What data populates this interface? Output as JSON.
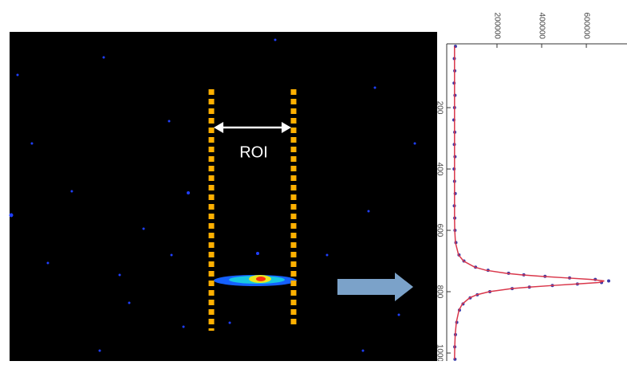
{
  "image": {
    "label": "ROI"
  },
  "chart_data": {
    "type": "line",
    "x": [
      0,
      40,
      80,
      120,
      160,
      200,
      240,
      280,
      320,
      360,
      400,
      440,
      480,
      520,
      560,
      600,
      640,
      680,
      700,
      720,
      730,
      740,
      745,
      750,
      755,
      760,
      765,
      770,
      775,
      780,
      785,
      790,
      800,
      810,
      820,
      840,
      860,
      900,
      940,
      980,
      1020
    ],
    "series": [
      {
        "color": "#3a3aa8",
        "style": "points",
        "values": [
          14000,
          9000,
          11000,
          8000,
          12000,
          10000,
          7000,
          11000,
          9000,
          12000,
          8000,
          10000,
          13000,
          9000,
          11000,
          12000,
          16000,
          30000,
          52000,
          104000,
          160000,
          252000,
          320000,
          415000,
          525000,
          640000,
          700000,
          668000,
          560000,
          448000,
          345000,
          268000,
          168000,
          112000,
          80000,
          48000,
          32000,
          20000,
          14000,
          11000,
          12000
        ]
      },
      {
        "color": "#d9364a",
        "style": "line",
        "values": [
          10000,
          10000,
          10000,
          10000,
          10000,
          10000,
          10000,
          10000,
          10000,
          10000,
          10000,
          10000,
          10000,
          10000,
          10000,
          11000,
          14000,
          28000,
          50000,
          100000,
          150000,
          240000,
          310000,
          400000,
          510000,
          620000,
          680000,
          655000,
          555000,
          445000,
          345000,
          265000,
          165000,
          110000,
          78000,
          45000,
          30000,
          18000,
          13000,
          11000,
          10000
        ]
      }
    ],
    "xlim": [
      -8,
      1026
    ],
    "xticks": [
      200,
      400,
      600,
      800,
      1000
    ],
    "ylim": [
      -25000,
      782000
    ],
    "yticks": [
      200000,
      400000,
      600000
    ]
  }
}
